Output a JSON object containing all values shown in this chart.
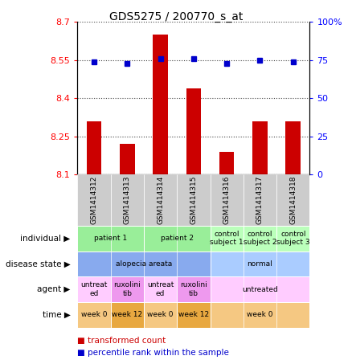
{
  "title": "GDS5275 / 200770_s_at",
  "samples": [
    "GSM1414312",
    "GSM1414313",
    "GSM1414314",
    "GSM1414315",
    "GSM1414316",
    "GSM1414317",
    "GSM1414318"
  ],
  "transformed_count": [
    8.31,
    8.22,
    8.65,
    8.44,
    8.19,
    8.31,
    8.31
  ],
  "percentile_rank": [
    74,
    73,
    76,
    76,
    73,
    75,
    74
  ],
  "ylim_left": [
    8.1,
    8.7
  ],
  "ylim_right": [
    0,
    100
  ],
  "yticks_left": [
    8.1,
    8.25,
    8.4,
    8.55,
    8.7
  ],
  "yticks_right": [
    0,
    25,
    50,
    75,
    100
  ],
  "ytick_labels_left": [
    "8.1",
    "8.25",
    "8.4",
    "8.55",
    "8.7"
  ],
  "ytick_labels_right": [
    "0",
    "25",
    "50",
    "75",
    "100%"
  ],
  "bar_color": "#cc0000",
  "dot_color": "#0000cc",
  "baseline": 8.1,
  "annot_rows": [
    {
      "label": "individual",
      "groups": [
        {
          "text": "patient 1",
          "cols": [
            0,
            1
          ],
          "color": "#99ee99"
        },
        {
          "text": "patient 2",
          "cols": [
            2,
            3
          ],
          "color": "#99ee99"
        },
        {
          "text": "control\nsubject 1",
          "cols": [
            4
          ],
          "color": "#bbffbb"
        },
        {
          "text": "control\nsubject 2",
          "cols": [
            5
          ],
          "color": "#bbffbb"
        },
        {
          "text": "control\nsubject 3",
          "cols": [
            6
          ],
          "color": "#bbffbb"
        }
      ]
    },
    {
      "label": "disease state",
      "groups": [
        {
          "text": "alopecia areata",
          "cols": [
            0,
            1,
            2,
            3
          ],
          "color": "#88aaee"
        },
        {
          "text": "normal",
          "cols": [
            4,
            5,
            6
          ],
          "color": "#aaccff"
        }
      ]
    },
    {
      "label": "agent",
      "groups": [
        {
          "text": "untreat\ned",
          "cols": [
            0
          ],
          "color": "#ffccff"
        },
        {
          "text": "ruxolini\ntib",
          "cols": [
            1
          ],
          "color": "#ee99ee"
        },
        {
          "text": "untreat\ned",
          "cols": [
            2
          ],
          "color": "#ffccff"
        },
        {
          "text": "ruxolini\ntib",
          "cols": [
            3
          ],
          "color": "#ee99ee"
        },
        {
          "text": "untreated",
          "cols": [
            4,
            5,
            6
          ],
          "color": "#ffccff"
        }
      ]
    },
    {
      "label": "time",
      "groups": [
        {
          "text": "week 0",
          "cols": [
            0
          ],
          "color": "#f5c882"
        },
        {
          "text": "week 12",
          "cols": [
            1
          ],
          "color": "#e8a840"
        },
        {
          "text": "week 0",
          "cols": [
            2
          ],
          "color": "#f5c882"
        },
        {
          "text": "week 12",
          "cols": [
            3
          ],
          "color": "#e8a840"
        },
        {
          "text": "week 0",
          "cols": [
            4,
            5,
            6
          ],
          "color": "#f5c882"
        }
      ]
    }
  ],
  "legend": [
    {
      "color": "#cc0000",
      "label": "transformed count"
    },
    {
      "color": "#0000cc",
      "label": "percentile rank within the sample"
    }
  ],
  "header_bg": "#cccccc",
  "dotted_line_color": "#444444"
}
